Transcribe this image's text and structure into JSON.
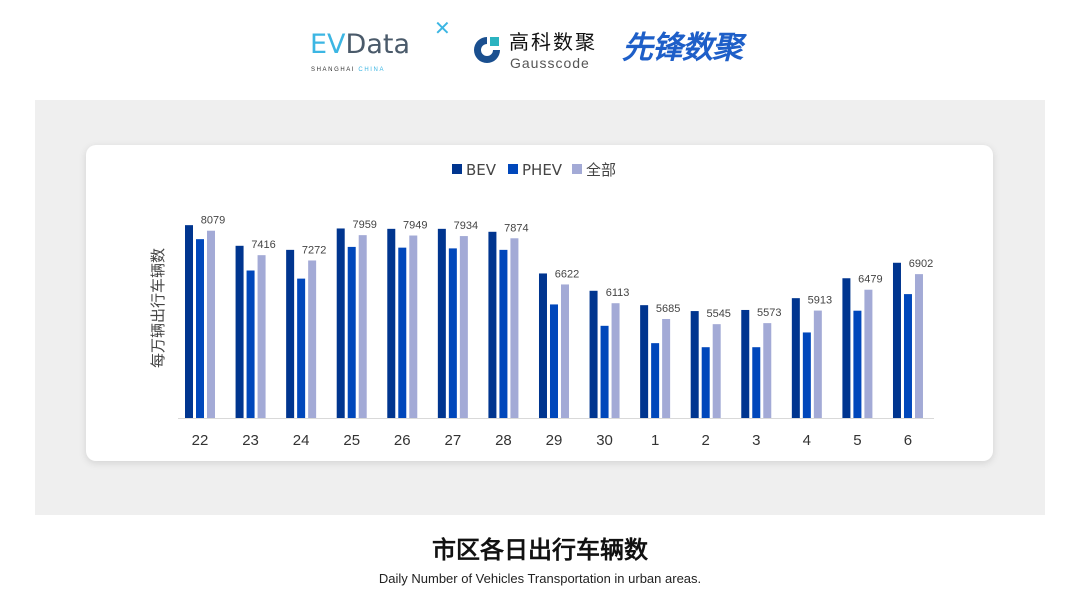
{
  "logos": {
    "evdata": {
      "ev": "EV",
      "rest": "Data",
      "sub_a": "SHANGHAI",
      "sub_b": "CHINA"
    },
    "gausscode": {
      "cn": "高科数聚",
      "en": "Gausscode"
    },
    "xianfeng": "先锋数聚"
  },
  "footer": {
    "title": "市区各日出行车辆数",
    "subtitle": "Daily Number of Vehicles Transportation in urban areas."
  },
  "colors": {
    "BEV": "#00358f",
    "PHEV": "#0047bb",
    "全部": "#a3aad6",
    "panel": "#efefef"
  },
  "chart_data": {
    "type": "bar",
    "title": "",
    "xlabel": "",
    "ylabel": "每万辆出行车辆数",
    "ylim": [
      3000,
      8500
    ],
    "grid": false,
    "legend_placement": "top-center",
    "categories": [
      "22",
      "23",
      "24",
      "25",
      "26",
      "27",
      "28",
      "29",
      "30",
      "1",
      "2",
      "3",
      "4",
      "5",
      "6"
    ],
    "series": [
      {
        "name": "BEV",
        "values": [
          8230,
          7670,
          7560,
          8140,
          8130,
          8130,
          8050,
          6920,
          6450,
          6060,
          5900,
          5930,
          6250,
          6790,
          7210
        ]
      },
      {
        "name": "PHEV",
        "values": [
          7850,
          7000,
          6780,
          7640,
          7620,
          7600,
          7560,
          6080,
          5500,
          5030,
          4920,
          4920,
          5320,
          5910,
          6360
        ]
      },
      {
        "name": "全部",
        "values": [
          8079,
          7416,
          7272,
          7959,
          7949,
          7934,
          7874,
          6622,
          6113,
          5685,
          5545,
          5573,
          5913,
          6479,
          6902
        ],
        "data_labels": true
      }
    ]
  }
}
